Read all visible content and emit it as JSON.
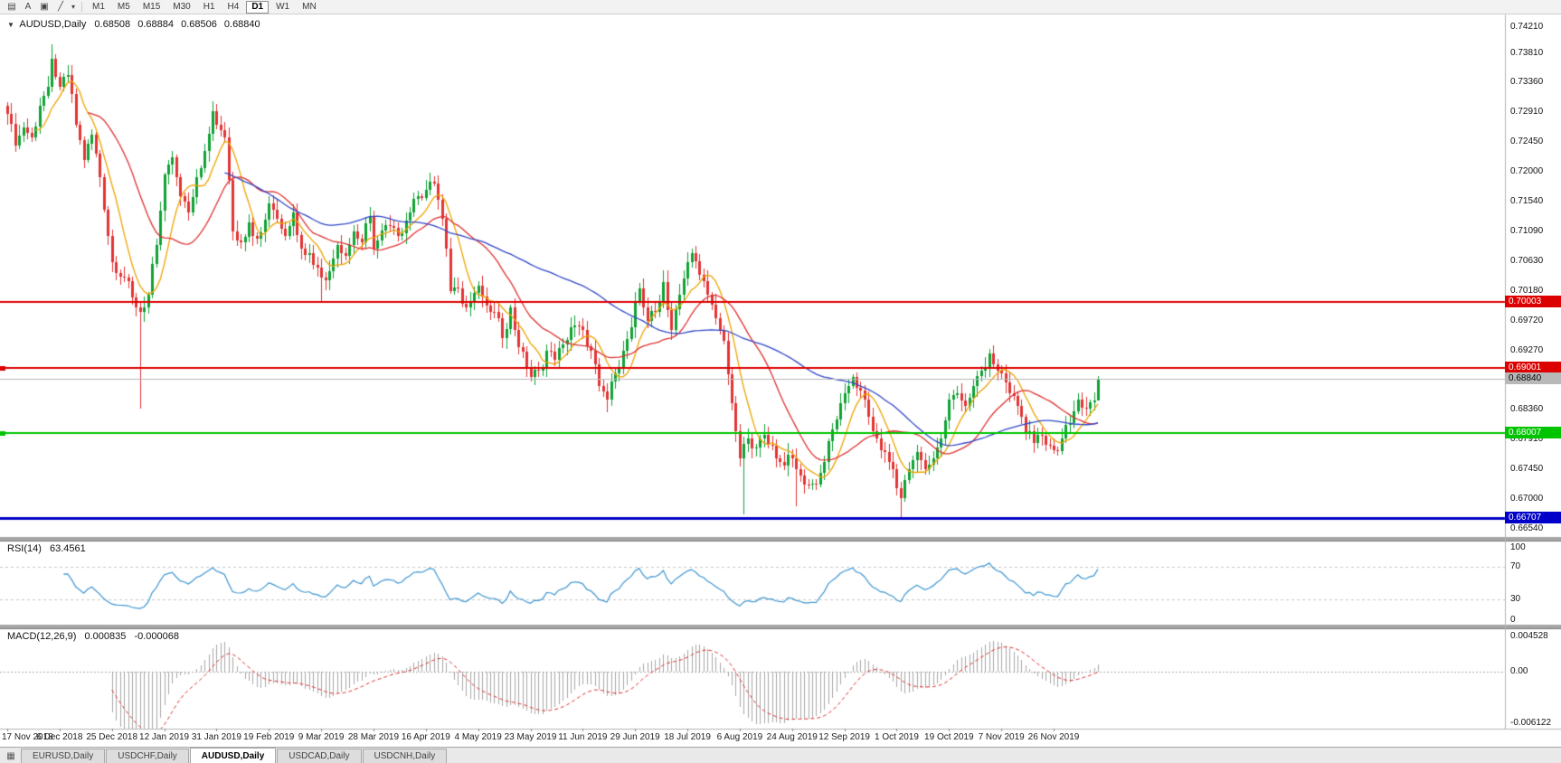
{
  "toolbar": {
    "left_icons": [
      {
        "name": "chart-list-icon",
        "glyph": "▤"
      },
      {
        "name": "text-label-icon",
        "glyph": "A"
      },
      {
        "name": "template-icon",
        "glyph": "▣"
      },
      {
        "name": "line-studies-icon",
        "glyph": "╱"
      },
      {
        "name": "dropdown-arrow-icon",
        "glyph": "▾"
      }
    ],
    "timeframes": [
      "M1",
      "M5",
      "M15",
      "M30",
      "H1",
      "H4",
      "D1",
      "W1",
      "MN"
    ],
    "active_timeframe": "D1"
  },
  "title": {
    "dropdown_glyph": "▼",
    "symbol": "AUDUSD,Daily",
    "open": "0.68508",
    "high": "0.68884",
    "low": "0.68506",
    "close": "0.68840"
  },
  "price_axis": {
    "min": 0.6642,
    "max": 0.744,
    "ticks": [
      "0.74210",
      "0.73810",
      "0.73360",
      "0.72910",
      "0.72450",
      "0.72000",
      "0.71540",
      "0.71090",
      "0.70630",
      "0.70180",
      "0.69720",
      "0.69270",
      "0.68810",
      "0.68360",
      "0.67910",
      "0.67450",
      "0.67000",
      "0.66540"
    ]
  },
  "hlines": [
    {
      "label": "0.70003",
      "price": 0.70003,
      "color": "#dd0000",
      "width": 2,
      "text_color": "#ffffff",
      "left_marker": false
    },
    {
      "label": "0.69001",
      "price": 0.69001,
      "color": "#dd0000",
      "width": 2,
      "text_color": "#ffffff",
      "left_marker": true
    },
    {
      "label": "0.68007",
      "price": 0.68007,
      "color": "#00c400",
      "width": 2,
      "text_color": "#ffffff",
      "left_marker": true
    },
    {
      "label": "0.66707",
      "price": 0.66707,
      "color": "#0000c8",
      "width": 3,
      "text_color": "#ffffff",
      "left_marker": false
    }
  ],
  "bid_line": {
    "label": "0.68840",
    "price": 0.6884,
    "color": "#b8b8b8",
    "text_color": "#000000"
  },
  "chart_data": {
    "type": "candlestick",
    "symbol": "AUDUSD",
    "timeframe": "Daily",
    "count": 272,
    "price_range_visible": [
      0.6654,
      0.7421
    ],
    "close_waypoints": [
      [
        0,
        0.7288
      ],
      [
        2,
        0.724
      ],
      [
        4,
        0.7268
      ],
      [
        6,
        0.7252
      ],
      [
        8,
        0.73
      ],
      [
        10,
        0.733
      ],
      [
        11,
        0.7372
      ],
      [
        13,
        0.733
      ],
      [
        15,
        0.7348
      ],
      [
        17,
        0.7272
      ],
      [
        19,
        0.7218
      ],
      [
        21,
        0.7256
      ],
      [
        23,
        0.7192
      ],
      [
        26,
        0.7062
      ],
      [
        29,
        0.7038
      ],
      [
        31,
        0.7008
      ],
      [
        33,
        0.6986
      ],
      [
        35,
        0.7012
      ],
      [
        37,
        0.7088
      ],
      [
        39,
        0.7195
      ],
      [
        41,
        0.7222
      ],
      [
        43,
        0.7162
      ],
      [
        45,
        0.7138
      ],
      [
        47,
        0.7192
      ],
      [
        49,
        0.7232
      ],
      [
        51,
        0.7292
      ],
      [
        52,
        0.7272
      ],
      [
        54,
        0.7252
      ],
      [
        56,
        0.7108
      ],
      [
        58,
        0.7092
      ],
      [
        60,
        0.7122
      ],
      [
        62,
        0.7098
      ],
      [
        65,
        0.7152
      ],
      [
        67,
        0.7128
      ],
      [
        69,
        0.7102
      ],
      [
        71,
        0.7138
      ],
      [
        73,
        0.7082
      ],
      [
        75,
        0.7076
      ],
      [
        78,
        0.7038
      ],
      [
        80,
        0.7048
      ],
      [
        82,
        0.7088
      ],
      [
        84,
        0.7072
      ],
      [
        86,
        0.7108
      ],
      [
        88,
        0.7092
      ],
      [
        90,
        0.7132
      ],
      [
        91,
        0.7082
      ],
      [
        94,
        0.7118
      ],
      [
        97,
        0.7102
      ],
      [
        100,
        0.7138
      ],
      [
        102,
        0.7162
      ],
      [
        104,
        0.7172
      ],
      [
        106,
        0.7182
      ],
      [
        108,
        0.7128
      ],
      [
        110,
        0.7018
      ],
      [
        112,
        0.7022
      ],
      [
        114,
        0.6992
      ],
      [
        117,
        0.7026
      ],
      [
        119,
        0.6996
      ],
      [
        121,
        0.6986
      ],
      [
        123,
        0.6946
      ],
      [
        125,
        0.6992
      ],
      [
        127,
        0.6932
      ],
      [
        129,
        0.6902
      ],
      [
        130,
        0.6886
      ],
      [
        132,
        0.6896
      ],
      [
        134,
        0.6926
      ],
      [
        136,
        0.6912
      ],
      [
        138,
        0.6936
      ],
      [
        140,
        0.6962
      ],
      [
        143,
        0.6958
      ],
      [
        145,
        0.6926
      ],
      [
        147,
        0.6872
      ],
      [
        149,
        0.6852
      ],
      [
        151,
        0.6892
      ],
      [
        153,
        0.6926
      ],
      [
        155,
        0.6962
      ],
      [
        157,
        0.7022
      ],
      [
        159,
        0.6972
      ],
      [
        161,
        0.6986
      ],
      [
        163,
        0.7032
      ],
      [
        165,
        0.6958
      ],
      [
        167,
        0.7012
      ],
      [
        169,
        0.7062
      ],
      [
        170,
        0.7076
      ],
      [
        172,
        0.7042
      ],
      [
        174,
        0.7012
      ],
      [
        176,
        0.6976
      ],
      [
        178,
        0.6942
      ],
      [
        180,
        0.6846
      ],
      [
        182,
        0.6762
      ],
      [
        184,
        0.6792
      ],
      [
        186,
        0.6778
      ],
      [
        188,
        0.6798
      ],
      [
        190,
        0.6782
      ],
      [
        192,
        0.6756
      ],
      [
        195,
        0.6762
      ],
      [
        197,
        0.6736
      ],
      [
        199,
        0.6722
      ],
      [
        201,
        0.6722
      ],
      [
        203,
        0.6756
      ],
      [
        205,
        0.6806
      ],
      [
        207,
        0.6846
      ],
      [
        208,
        0.6862
      ],
      [
        210,
        0.6886
      ],
      [
        212,
        0.6866
      ],
      [
        214,
        0.6826
      ],
      [
        216,
        0.6792
      ],
      [
        218,
        0.6772
      ],
      [
        220,
        0.6746
      ],
      [
        221,
        0.6716
      ],
      [
        222,
        0.6702
      ],
      [
        224,
        0.6746
      ],
      [
        226,
        0.6772
      ],
      [
        228,
        0.6746
      ],
      [
        230,
        0.6762
      ],
      [
        232,
        0.6792
      ],
      [
        234,
        0.6852
      ],
      [
        236,
        0.6862
      ],
      [
        238,
        0.6842
      ],
      [
        240,
        0.6872
      ],
      [
        242,
        0.6896
      ],
      [
        244,
        0.6922
      ],
      [
        246,
        0.6896
      ],
      [
        247,
        0.6892
      ],
      [
        249,
        0.6862
      ],
      [
        251,
        0.6842
      ],
      [
        253,
        0.6802
      ],
      [
        255,
        0.6786
      ],
      [
        257,
        0.6796
      ],
      [
        259,
        0.6782
      ],
      [
        260,
        0.6774
      ],
      [
        262,
        0.6792
      ],
      [
        264,
        0.6816
      ],
      [
        266,
        0.6852
      ],
      [
        268,
        0.6838
      ],
      [
        270,
        0.6851
      ],
      [
        271,
        0.6884
      ]
    ],
    "wick_overrides": [
      {
        "i": 11,
        "h": 0.7394
      },
      {
        "i": 33,
        "l": 0.6838
      },
      {
        "i": 78,
        "l": 0.7003
      },
      {
        "i": 149,
        "l": 0.6832
      },
      {
        "i": 170,
        "h": 0.7082
      },
      {
        "i": 183,
        "l": 0.6677
      },
      {
        "i": 196,
        "l": 0.6689
      },
      {
        "i": 222,
        "l": 0.667
      },
      {
        "i": 244,
        "h": 0.6929
      }
    ],
    "last_candle": {
      "o": 0.68508,
      "h": 0.68884,
      "l": 0.68506,
      "c": 0.6884
    },
    "date_labels": [
      "17 Nov 2018",
      "6 Dec 2018",
      "25 Dec 2018",
      "12 Jan 2019",
      "31 Jan 2019",
      "19 Feb 2019",
      "9 Mar 2019",
      "28 Mar 2019",
      "16 Apr 2019",
      "4 May 2019",
      "23 May 2019",
      "11 Jun 2019",
      "29 Jun 2019",
      "18 Jul 2019",
      "6 Aug 2019",
      "24 Aug 2019",
      "12 Sep 2019",
      "1 Oct 2019",
      "19 Oct 2019",
      "7 Nov 2019",
      "26 Nov 2019"
    ],
    "date_label_step": 13,
    "moving_averages": [
      {
        "name": "fast",
        "period": 8,
        "color": "#eea400"
      },
      {
        "name": "mid",
        "period": 21,
        "color": "#e03030"
      },
      {
        "name": "slow",
        "period": 55,
        "color": "#3148c8"
      }
    ]
  },
  "rsi": {
    "name": "RSI(14)",
    "value": "63.4561",
    "period": 14,
    "color": "#3e96d2",
    "range": [
      0,
      100
    ],
    "levels": [
      {
        "value": 100,
        "label": "100",
        "line": false
      },
      {
        "value": 70,
        "label": "70",
        "line": true
      },
      {
        "value": 30,
        "label": "30",
        "line": true
      },
      {
        "value": 0,
        "label": "0",
        "line": false
      }
    ]
  },
  "macd": {
    "name": "MACD(12,26,9)",
    "main_value": "0.000835",
    "signal_value": "-0.000068",
    "fast": 12,
    "slow": 26,
    "signal_period": 9,
    "range": [
      -0.006122,
      0.004528
    ],
    "axis_labels": [
      "0.004528",
      "0.00",
      "-0.006122"
    ],
    "hist_color": "#a8a8a8",
    "signal_color": "#e03030"
  },
  "tabs": {
    "windows_icon_glyph": "▦",
    "items": [
      "EURUSD,Daily",
      "USDCHF,Daily",
      "AUDUSD,Daily",
      "USDCAD,Daily",
      "USDCNH,Daily"
    ],
    "active_index": 2
  },
  "colors": {
    "up": "#0fa234",
    "down": "#e23434",
    "background": "#ffffff"
  }
}
